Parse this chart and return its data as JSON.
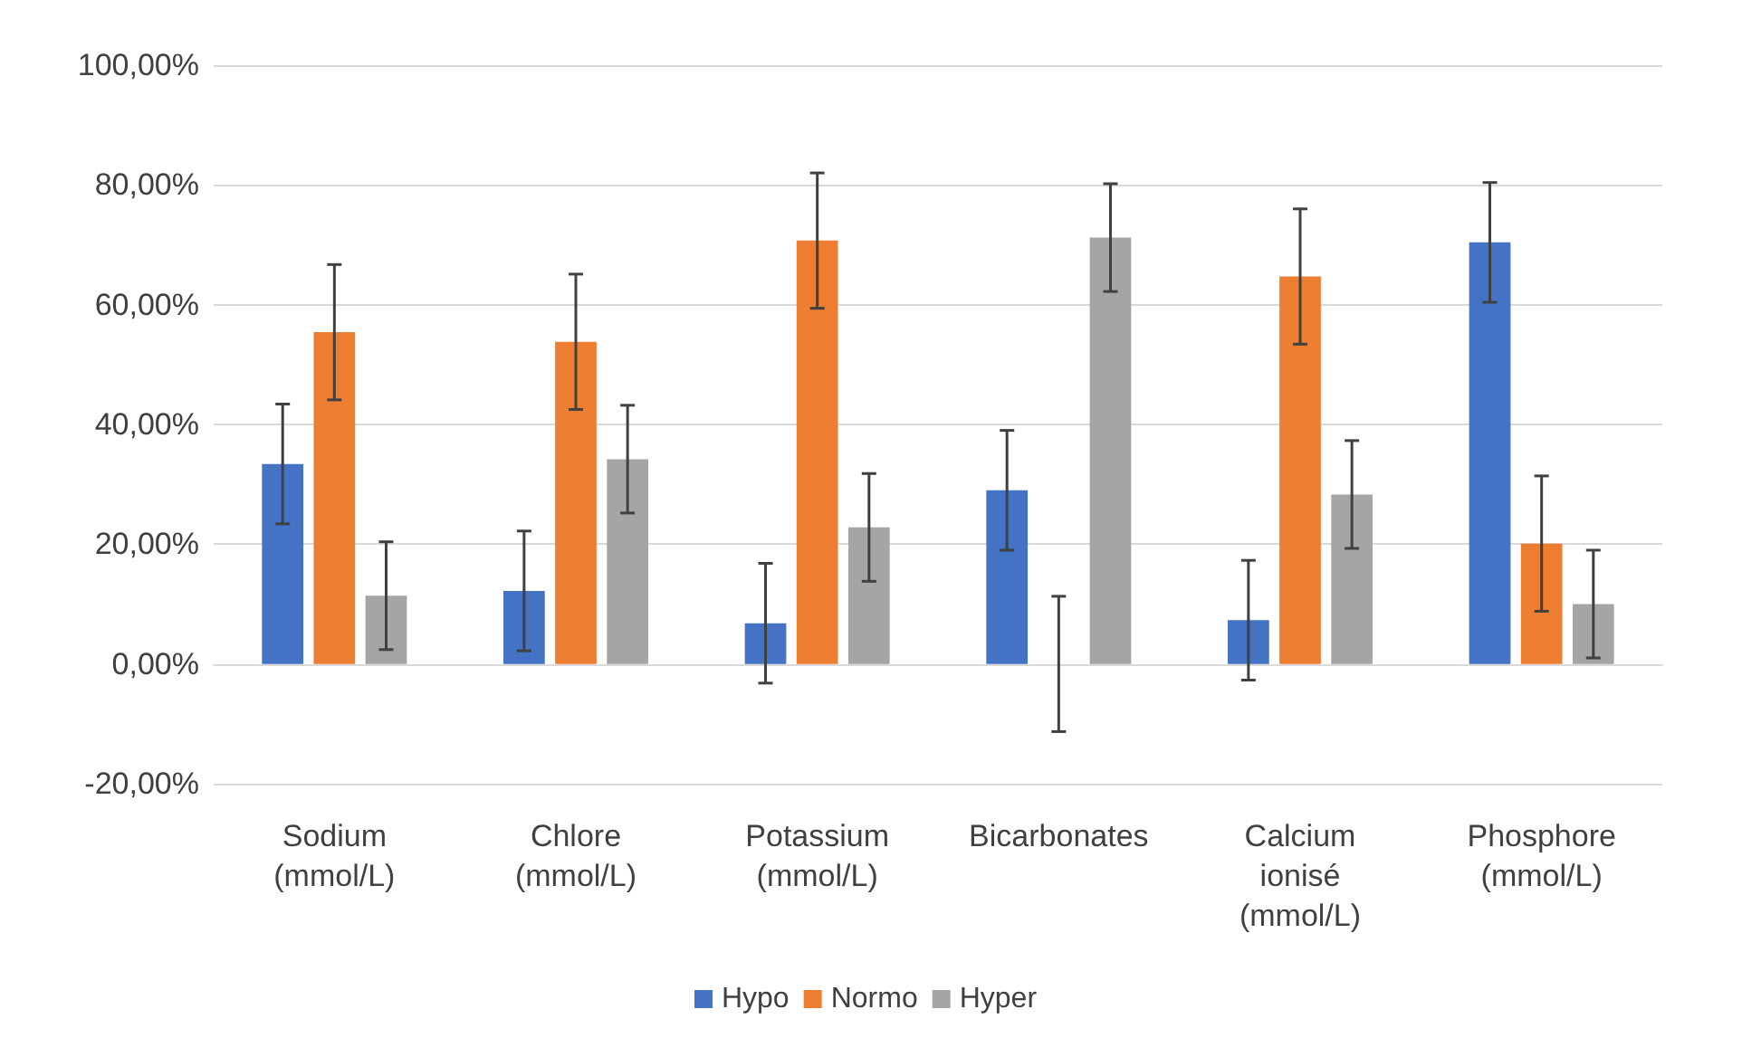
{
  "chart_data": {
    "type": "bar",
    "categories": [
      "Sodium (mmol/L)",
      "Chlore (mmol/L)",
      "Potassium (mmol/L)",
      "Bicarbonates",
      "Calcium ionisé (mmol/L)",
      "Phosphore (mmol/L)"
    ],
    "series": [
      {
        "name": "Hypo",
        "color": "#4472c4",
        "values": [
          33.4,
          12.2,
          6.8,
          29,
          7.3,
          70.4
        ],
        "errors": [
          10,
          10,
          10,
          10,
          10,
          10
        ]
      },
      {
        "name": "Normo",
        "color": "#ed7d31",
        "values": [
          55.4,
          53.8,
          70.7,
          0,
          64.7,
          20.1
        ],
        "errors": [
          11.3,
          11.3,
          11.3,
          11.3,
          11.3,
          11.3
        ]
      },
      {
        "name": "Hyper",
        "color": "#a5a5a5",
        "values": [
          11.4,
          34.2,
          22.8,
          71.2,
          28.3,
          10
        ],
        "errors": [
          9,
          9,
          9,
          9,
          9,
          9
        ]
      }
    ],
    "ylim": [
      -20,
      100
    ],
    "yticks": [
      {
        "value": -20,
        "label": "-20,00%"
      },
      {
        "value": 0,
        "label": "0,00%"
      },
      {
        "value": 20,
        "label": "20,00%"
      },
      {
        "value": 40,
        "label": "40,00%"
      },
      {
        "value": 60,
        "label": "60,00%"
      },
      {
        "value": 80,
        "label": "80,00%"
      },
      {
        "value": 100,
        "label": "100,00%"
      }
    ],
    "grid": "y",
    "legend": "bottom"
  }
}
